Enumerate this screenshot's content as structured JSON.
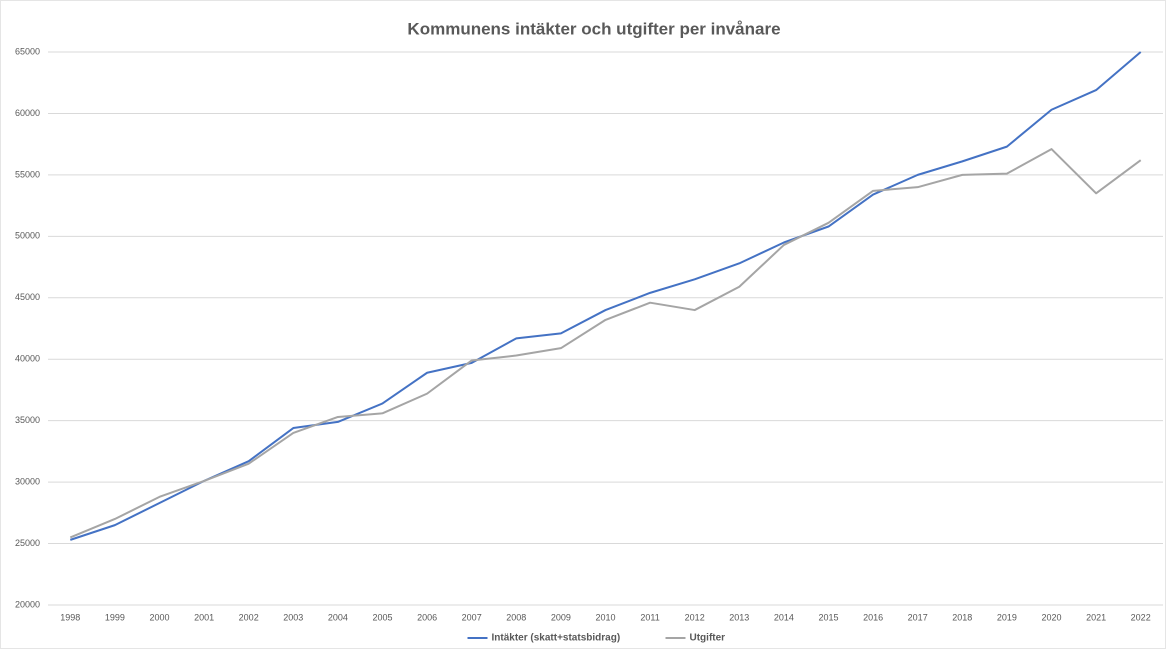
{
  "chart_data": {
    "type": "line",
    "title": "Kommunens intäkter och utgifter per invånare",
    "categories": [
      "1998",
      "1999",
      "2000",
      "2001",
      "2002",
      "2003",
      "2004",
      "2005",
      "2006",
      "2007",
      "2008",
      "2009",
      "2010",
      "2011",
      "2012",
      "2013",
      "2014",
      "2015",
      "2016",
      "2017",
      "2018",
      "2019",
      "2020",
      "2021",
      "2022"
    ],
    "series": [
      {
        "name": "Intäkter (skatt+statsbidrag)",
        "color": "#4472c4",
        "values": [
          25300,
          26500,
          28300,
          30100,
          31700,
          34400,
          34900,
          36400,
          38900,
          39700,
          41700,
          42100,
          44000,
          45400,
          46500,
          47800,
          49500,
          50800,
          53400,
          55000,
          56100,
          57300,
          60300,
          61900,
          65000
        ]
      },
      {
        "name": "Utgifter",
        "color": "#a5a5a5",
        "values": [
          25500,
          27000,
          28800,
          30100,
          31500,
          34000,
          35300,
          35600,
          37200,
          39900,
          40300,
          40900,
          43200,
          44600,
          44000,
          45900,
          49300,
          51100,
          53700,
          54000,
          55000,
          55100,
          57100,
          53500,
          56200
        ]
      }
    ],
    "ylim": [
      20000,
      65000
    ],
    "yticks": [
      20000,
      25000,
      30000,
      35000,
      40000,
      45000,
      50000,
      55000,
      60000,
      65000
    ],
    "grid": true,
    "legend": "bottom"
  }
}
